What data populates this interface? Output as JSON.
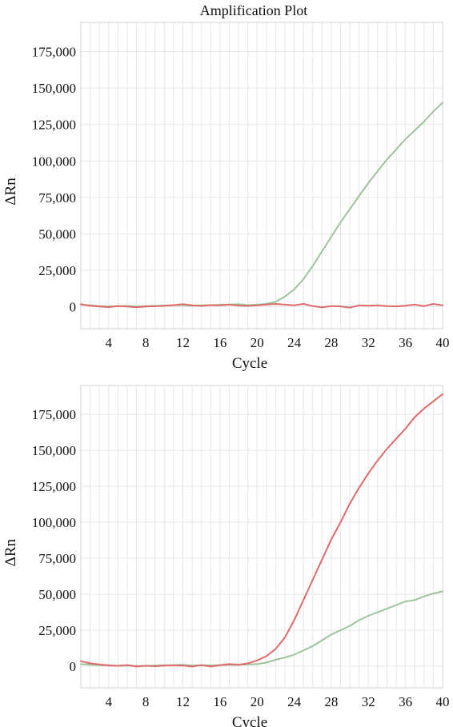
{
  "chart_data": [
    {
      "type": "line",
      "title": "Amplification Plot",
      "xlabel": "Cycle",
      "ylabel": "ΔRn",
      "xlim": [
        1,
        40
      ],
      "ylim": [
        -15000,
        195000
      ],
      "xticks": [
        4,
        8,
        12,
        16,
        20,
        24,
        28,
        32,
        36,
        40
      ],
      "yticks": [
        0,
        25000,
        50000,
        75000,
        100000,
        125000,
        150000,
        175000
      ],
      "ytick_labels": [
        "0",
        "25,000",
        "50,000",
        "75,000",
        "100,000",
        "125,000",
        "150,000",
        "175,000"
      ],
      "grid": true,
      "x": [
        1,
        2,
        3,
        4,
        5,
        6,
        7,
        8,
        9,
        10,
        11,
        12,
        13,
        14,
        15,
        16,
        17,
        18,
        19,
        20,
        21,
        22,
        23,
        24,
        25,
        26,
        27,
        28,
        29,
        30,
        31,
        32,
        33,
        34,
        35,
        36,
        37,
        38,
        39,
        40
      ],
      "series": [
        {
          "color": "#9cc49a",
          "values": [
            1500,
            1000,
            500,
            300,
            400,
            600,
            200,
            500,
            700,
            900,
            1000,
            1200,
            800,
            1000,
            1200,
            1400,
            1600,
            1800,
            1200,
            1500,
            2000,
            3500,
            7000,
            12000,
            19000,
            28000,
            38000,
            48000,
            58000,
            67000,
            76000,
            85000,
            93000,
            101000,
            108000,
            115000,
            121000,
            127000,
            134000,
            140000
          ]
        },
        {
          "color": "#e06a6a",
          "values": [
            1800,
            800,
            200,
            -200,
            500,
            200,
            -300,
            200,
            400,
            700,
            1200,
            1800,
            1000,
            600,
            1200,
            1000,
            1500,
            900,
            600,
            1000,
            1500,
            2000,
            1500,
            1000,
            2000,
            500,
            -300,
            500,
            300,
            -500,
            1000,
            800,
            1000,
            500,
            300,
            800,
            1500,
            500,
            2000,
            1000
          ]
        }
      ]
    },
    {
      "type": "line",
      "xlabel": "Cycle",
      "ylabel": "ΔRn",
      "xlim": [
        1,
        40
      ],
      "ylim": [
        -15000,
        195000
      ],
      "xticks": [
        4,
        8,
        12,
        16,
        20,
        24,
        28,
        32,
        36,
        40
      ],
      "yticks": [
        0,
        25000,
        50000,
        75000,
        100000,
        125000,
        150000,
        175000
      ],
      "ytick_labels": [
        "0",
        "25,000",
        "50,000",
        "75,000",
        "100,000",
        "125,000",
        "150,000",
        "175,000"
      ],
      "grid": true,
      "x": [
        1,
        2,
        3,
        4,
        5,
        6,
        7,
        8,
        9,
        10,
        11,
        12,
        13,
        14,
        15,
        16,
        17,
        18,
        19,
        20,
        21,
        22,
        23,
        24,
        25,
        26,
        27,
        28,
        29,
        30,
        31,
        32,
        33,
        34,
        35,
        36,
        37,
        38,
        39,
        40
      ],
      "series": [
        {
          "color": "#9cc49a",
          "values": [
            1500,
            1000,
            800,
            500,
            300,
            500,
            200,
            300,
            500,
            700,
            800,
            1000,
            500,
            700,
            600,
            800,
            900,
            1000,
            1200,
            1500,
            2500,
            4500,
            6000,
            8000,
            11000,
            14000,
            18000,
            22000,
            25000,
            28000,
            32000,
            35000,
            37500,
            40000,
            42500,
            45000,
            46000,
            48500,
            50500,
            52000
          ]
        },
        {
          "color": "#e06a6a",
          "values": [
            3500,
            2000,
            1200,
            600,
            300,
            800,
            -200,
            300,
            0,
            400,
            600,
            500,
            -200,
            800,
            -200,
            700,
            1500,
            1000,
            2000,
            4000,
            7000,
            12000,
            20000,
            32000,
            46000,
            60000,
            74000,
            88000,
            100000,
            113000,
            124000,
            134000,
            143000,
            151000,
            158000,
            165000,
            173000,
            179000,
            184000,
            189000
          ]
        }
      ]
    }
  ]
}
